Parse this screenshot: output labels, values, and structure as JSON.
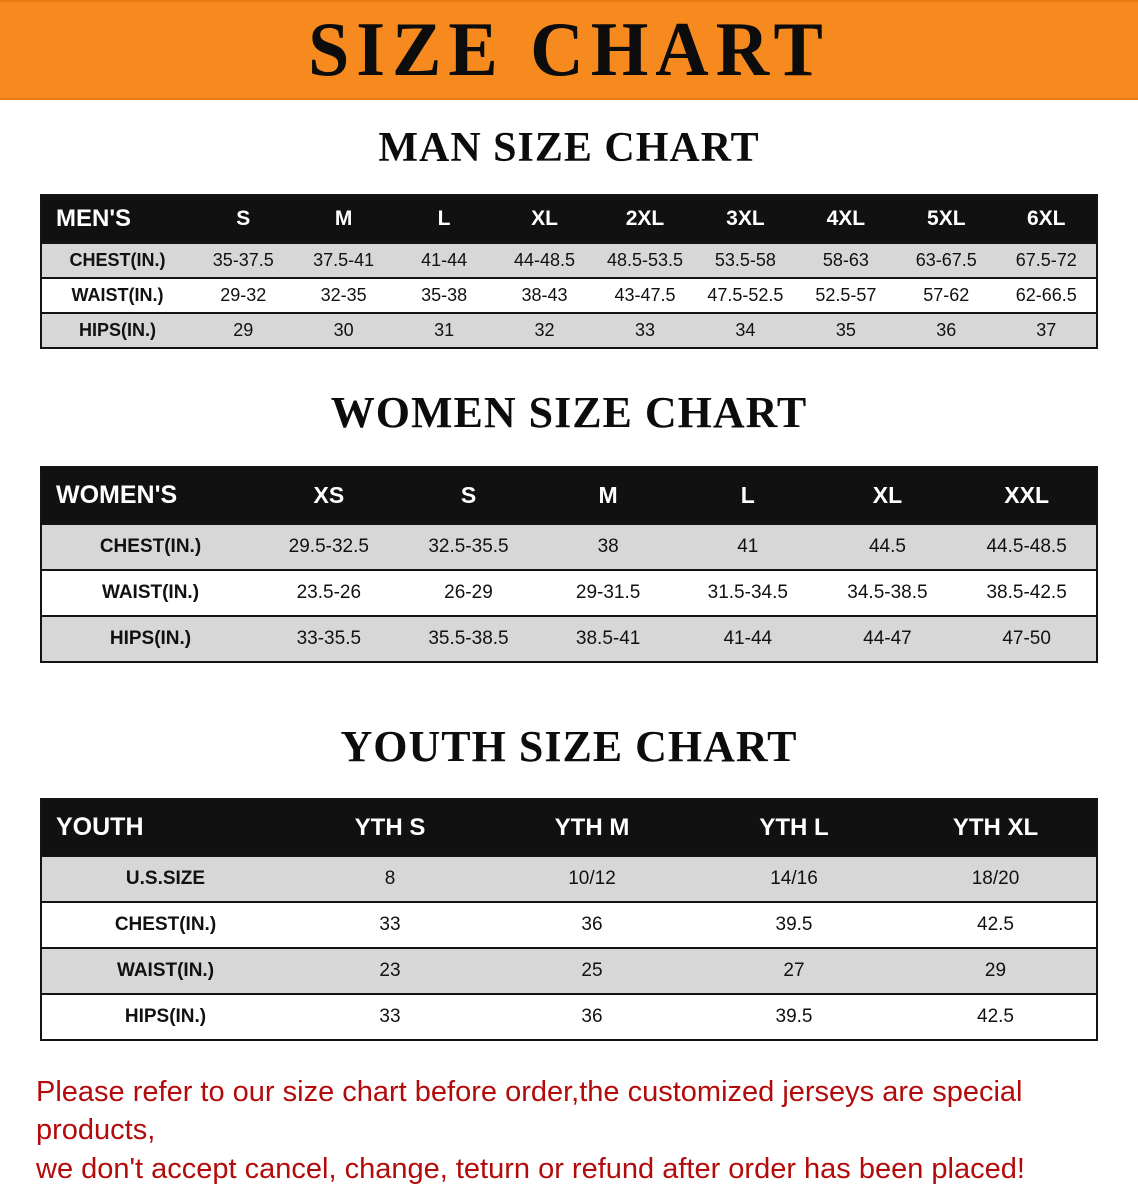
{
  "colors": {
    "banner_bg": "#f68a1e",
    "header_row_bg": "#111111",
    "shaded_row_bg": "#d7d7d7",
    "notice_text": "#b30b0b"
  },
  "banner": {
    "title": "SIZE CHART"
  },
  "sections": [
    {
      "id": "men",
      "heading": "MAN SIZE CHART",
      "table": {
        "header": [
          "MEN'S",
          "S",
          "M",
          "L",
          "XL",
          "2XL",
          "3XL",
          "4XL",
          "5XL",
          "6XL"
        ],
        "rows": [
          [
            "CHEST(IN.)",
            "35-37.5",
            "37.5-41",
            "41-44",
            "44-48.5",
            "48.5-53.5",
            "53.5-58",
            "58-63",
            "63-67.5",
            "67.5-72"
          ],
          [
            "WAIST(IN.)",
            "29-32",
            "32-35",
            "35-38",
            "38-43",
            "43-47.5",
            "47.5-52.5",
            "52.5-57",
            "57-62",
            "62-66.5"
          ],
          [
            "HIPS(IN.)",
            "29",
            "30",
            "31",
            "32",
            "33",
            "34",
            "35",
            "36",
            "37"
          ]
        ]
      }
    },
    {
      "id": "women",
      "heading": "WOMEN SIZE CHART",
      "table": {
        "header": [
          "WOMEN'S",
          "XS",
          "S",
          "M",
          "L",
          "XL",
          "XXL"
        ],
        "rows": [
          [
            "CHEST(IN.)",
            "29.5-32.5",
            "32.5-35.5",
            "38",
            "41",
            "44.5",
            "44.5-48.5"
          ],
          [
            "WAIST(IN.)",
            "23.5-26",
            "26-29",
            "29-31.5",
            "31.5-34.5",
            "34.5-38.5",
            "38.5-42.5"
          ],
          [
            "HIPS(IN.)",
            "33-35.5",
            "35.5-38.5",
            "38.5-41",
            "41-44",
            "44-47",
            "47-50"
          ]
        ]
      }
    },
    {
      "id": "youth",
      "heading": "YOUTH SIZE CHART",
      "table": {
        "header": [
          "YOUTH",
          "YTH S",
          "YTH M",
          "YTH L",
          "YTH XL"
        ],
        "rows": [
          [
            "U.S.SIZE",
            "8",
            "10/12",
            "14/16",
            "18/20"
          ],
          [
            "CHEST(IN.)",
            "33",
            "36",
            "39.5",
            "42.5"
          ],
          [
            "WAIST(IN.)",
            "23",
            "25",
            "27",
            "29"
          ],
          [
            "HIPS(IN.)",
            "33",
            "36",
            "39.5",
            "42.5"
          ]
        ]
      }
    }
  ],
  "footer": {
    "lines": [
      "Please refer to our size chart before order,the customized jerseys are special products,",
      "we don't accept cancel, change, teturn or refund after order has been placed!"
    ]
  }
}
